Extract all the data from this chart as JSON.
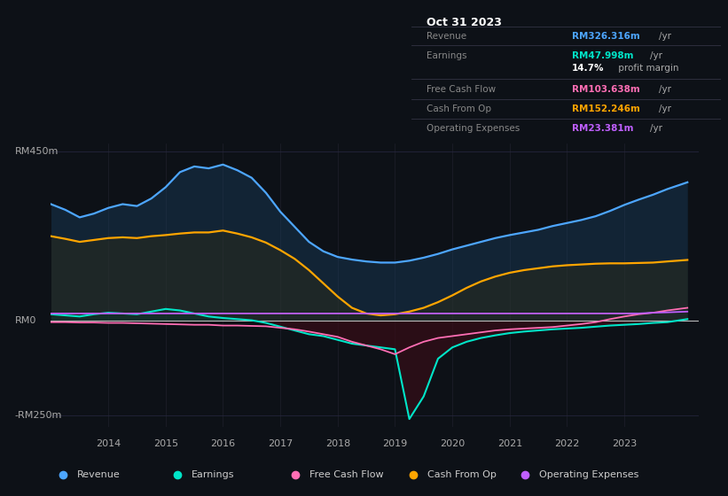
{
  "bg_color": "#0d1117",
  "title_box": {
    "date": "Oct 31 2023",
    "rows": [
      {
        "label": "Revenue",
        "value": "RM326.316m",
        "unit": "/yr",
        "color": "#4da6ff"
      },
      {
        "label": "Earnings",
        "value": "RM47.998m",
        "unit": "/yr",
        "color": "#00e5c8"
      },
      {
        "label": "",
        "value": "14.7%",
        "unit": " profit margin",
        "color": "#ffffff"
      },
      {
        "label": "Free Cash Flow",
        "value": "RM103.638m",
        "unit": "/yr",
        "color": "#ff6eb4"
      },
      {
        "label": "Cash From Op",
        "value": "RM152.246m",
        "unit": "/yr",
        "color": "#ffa500"
      },
      {
        "label": "Operating Expenses",
        "value": "RM23.381m",
        "unit": "/yr",
        "color": "#bf5fff"
      }
    ]
  },
  "ylabel_top": "RM450m",
  "ylabel_mid": "RM0",
  "ylabel_bot": "-RM250m",
  "ylim": [
    -280,
    470
  ],
  "xlim_year": [
    2013.0,
    2024.3
  ],
  "xticks": [
    2014,
    2015,
    2016,
    2017,
    2018,
    2019,
    2020,
    2021,
    2022,
    2023
  ],
  "legend": [
    {
      "label": "Revenue",
      "color": "#4da6ff"
    },
    {
      "label": "Earnings",
      "color": "#00e5c8"
    },
    {
      "label": "Free Cash Flow",
      "color": "#ff6eb4"
    },
    {
      "label": "Cash From Op",
      "color": "#ffa500"
    },
    {
      "label": "Operating Expenses",
      "color": "#bf5fff"
    }
  ],
  "revenue_color": "#4da6ff",
  "earnings_color": "#00e5c8",
  "fcf_color": "#ff6eb4",
  "cashfromop_color": "#ffa500",
  "opex_color": "#bf5fff"
}
